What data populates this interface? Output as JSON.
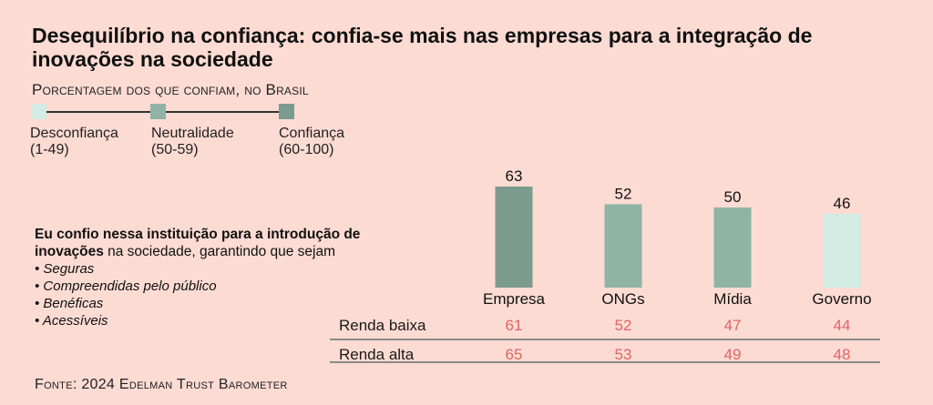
{
  "title": "Desequilíbrio na confiança: confia-se mais nas empresas para a integração de inovações na sociedade",
  "subtitle": "Porcentagem dos que confiam, no Brasil",
  "legend": [
    {
      "label": "Desconfiança",
      "range": "(1-49)",
      "color": "#d2ebe3"
    },
    {
      "label": "Neutralidade",
      "range": "(50-59)",
      "color": "#8fb4a6"
    },
    {
      "label": "Confiança",
      "range": "(60-100)",
      "color": "#7a9b8e"
    }
  ],
  "note": {
    "line1": "Eu confio nessa instituição para a introdução de",
    "line2_bold": "inovações",
    "line2_rest": " na sociedade, garantindo que sejam",
    "bullets": [
      "• Seguras",
      "• Compreendidas pelo público",
      "• Benéficas",
      "• Acessíveis"
    ]
  },
  "chart_data": {
    "type": "bar",
    "title": "Desequilíbrio na confiança: confia-se mais nas empresas para a integração de inovações na sociedade",
    "categories": [
      "Empresa",
      "ONGs",
      "Mídia",
      "Governo"
    ],
    "values": [
      63,
      52,
      50,
      46
    ],
    "colors": [
      "#7a9b8e",
      "#8fb4a6",
      "#8fb4a6",
      "#d2ebe3"
    ],
    "ylim": [
      0,
      63
    ],
    "grid": false,
    "table": {
      "rows": [
        {
          "label": "Renda baixa",
          "values": [
            61,
            52,
            47,
            44
          ]
        },
        {
          "label": "Renda alta",
          "values": [
            65,
            53,
            49,
            48
          ]
        }
      ]
    }
  },
  "source": "Fonte: 2024 Edelman Trust Barometer"
}
